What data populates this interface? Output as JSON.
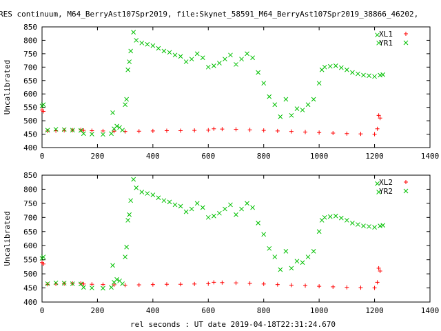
{
  "title": "RES continuum, M64_BerryAst107Spr2019, file:Skynet_58591_M64_BerryAst107Spr2019_38866_46202,",
  "shared_xlabel": "rel seconds : UT date 2019-04-18T22:31:24.670",
  "colors": {
    "red_series": "#ff0000",
    "green_series": "#00c000",
    "axes": "#000000",
    "background": "#ffffff"
  },
  "chart_data": [
    {
      "type": "scatter",
      "ylabel": "Uncalibrated",
      "xlim": [
        0,
        1400
      ],
      "ylim": [
        400,
        850
      ],
      "x_ticks": [
        0,
        200,
        400,
        600,
        800,
        1000,
        1200,
        1400
      ],
      "y_ticks": [
        400,
        450,
        500,
        550,
        600,
        650,
        700,
        750,
        800,
        850
      ],
      "legend_position": "top-right",
      "series": [
        {
          "name": "XL1",
          "marker": "plus",
          "color": "#ff0000",
          "x": [
            0,
            5,
            20,
            50,
            80,
            110,
            140,
            150,
            180,
            220,
            260,
            300,
            350,
            400,
            450,
            500,
            550,
            600,
            620,
            650,
            700,
            750,
            800,
            850,
            900,
            950,
            1000,
            1050,
            1100,
            1150,
            1200,
            1210,
            1215,
            1220
          ],
          "y": [
            540,
            535,
            462,
            463,
            464,
            465,
            466,
            464,
            463,
            462,
            461,
            460,
            461,
            462,
            463,
            463,
            464,
            465,
            470,
            469,
            468,
            466,
            464,
            462,
            460,
            458,
            456,
            454,
            452,
            451,
            450,
            470,
            520,
            510
          ]
        },
        {
          "name": "YR1",
          "marker": "cross",
          "color": "#00c000",
          "x": [
            0,
            5,
            20,
            50,
            80,
            110,
            140,
            150,
            180,
            220,
            250,
            255,
            260,
            270,
            280,
            290,
            300,
            305,
            310,
            315,
            320,
            330,
            340,
            360,
            380,
            400,
            420,
            440,
            460,
            480,
            500,
            520,
            540,
            560,
            580,
            600,
            620,
            640,
            660,
            680,
            700,
            720,
            740,
            760,
            780,
            800,
            820,
            840,
            860,
            880,
            900,
            920,
            940,
            960,
            980,
            1000,
            1010,
            1020,
            1040,
            1060,
            1080,
            1100,
            1120,
            1140,
            1160,
            1180,
            1200,
            1210,
            1215,
            1220,
            1230
          ],
          "y": [
            555,
            560,
            465,
            468,
            467,
            465,
            464,
            452,
            450,
            449,
            452,
            530,
            470,
            480,
            475,
            465,
            560,
            580,
            690,
            720,
            760,
            830,
            800,
            790,
            785,
            780,
            770,
            760,
            755,
            745,
            740,
            720,
            730,
            750,
            735,
            700,
            705,
            715,
            730,
            745,
            710,
            730,
            750,
            735,
            680,
            640,
            590,
            560,
            515,
            580,
            520,
            545,
            540,
            560,
            580,
            640,
            690,
            700,
            703,
            705,
            698,
            690,
            680,
            675,
            670,
            668,
            665,
            820,
            790,
            670,
            672
          ]
        }
      ]
    },
    {
      "type": "scatter",
      "ylabel": "Uncalibrated",
      "xlim": [
        0,
        1400
      ],
      "ylim": [
        400,
        850
      ],
      "x_ticks": [
        0,
        200,
        400,
        600,
        800,
        1000,
        1200,
        1400
      ],
      "y_ticks": [
        400,
        450,
        500,
        550,
        600,
        650,
        700,
        750,
        800,
        850
      ],
      "legend_position": "top-right",
      "series": [
        {
          "name": "XL2",
          "marker": "plus",
          "color": "#ff0000",
          "x": [
            0,
            5,
            20,
            50,
            80,
            110,
            140,
            150,
            180,
            220,
            260,
            300,
            350,
            400,
            450,
            500,
            550,
            600,
            620,
            650,
            700,
            750,
            800,
            850,
            900,
            950,
            1000,
            1050,
            1100,
            1150,
            1200,
            1210,
            1215,
            1220
          ],
          "y": [
            540,
            535,
            463,
            464,
            465,
            466,
            466,
            464,
            463,
            462,
            461,
            460,
            461,
            462,
            463,
            463,
            464,
            465,
            470,
            469,
            468,
            466,
            464,
            462,
            460,
            458,
            456,
            454,
            452,
            451,
            450,
            470,
            520,
            510
          ]
        },
        {
          "name": "YR2",
          "marker": "cross",
          "color": "#00c000",
          "x": [
            0,
            5,
            20,
            50,
            80,
            110,
            140,
            150,
            180,
            220,
            250,
            255,
            260,
            270,
            280,
            290,
            300,
            305,
            310,
            315,
            320,
            330,
            340,
            360,
            380,
            400,
            420,
            440,
            460,
            480,
            500,
            520,
            540,
            560,
            580,
            600,
            620,
            640,
            660,
            680,
            700,
            720,
            740,
            760,
            780,
            800,
            820,
            840,
            860,
            880,
            900,
            920,
            940,
            960,
            980,
            1000,
            1010,
            1020,
            1040,
            1060,
            1080,
            1100,
            1120,
            1140,
            1160,
            1180,
            1200,
            1210,
            1215,
            1220,
            1230
          ],
          "y": [
            555,
            560,
            465,
            468,
            467,
            465,
            464,
            452,
            450,
            449,
            452,
            530,
            470,
            480,
            475,
            465,
            560,
            595,
            690,
            710,
            760,
            835,
            805,
            790,
            785,
            780,
            770,
            760,
            755,
            745,
            740,
            720,
            730,
            750,
            735,
            700,
            705,
            715,
            730,
            745,
            710,
            730,
            750,
            735,
            680,
            640,
            590,
            560,
            515,
            580,
            520,
            545,
            540,
            560,
            580,
            650,
            690,
            700,
            703,
            705,
            698,
            690,
            680,
            675,
            670,
            668,
            665,
            820,
            790,
            670,
            672
          ]
        }
      ]
    }
  ]
}
